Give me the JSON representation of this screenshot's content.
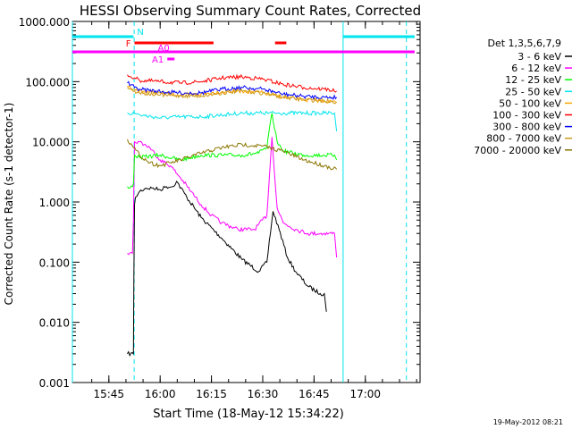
{
  "chart_data": {
    "type": "line",
    "title": "HESSI Observing Summary Count Rates, Corrected",
    "xlabel": "Start Time (18-May-12 15:34:22)",
    "ylabel": "Corrected Count Rate (s-1 detector-1)",
    "footer": "19-May-2012 08:21",
    "y_scale": "log",
    "ylim": [
      0.001,
      1000
    ],
    "xlim": [
      15.5723,
      17.2667
    ],
    "xlim_display": [
      "15:34:22",
      "17:16:00"
    ],
    "x_ticks": [
      {
        "label": "15:45",
        "x": 15.75
      },
      {
        "label": "16:00",
        "x": 16.0
      },
      {
        "label": "16:15",
        "x": 16.25
      },
      {
        "label": "16:30",
        "x": 16.5
      },
      {
        "label": "16:45",
        "x": 16.75
      },
      {
        "label": "17:00",
        "x": 17.0
      }
    ],
    "y_ticks": [
      {
        "label": "1000.000",
        "y": 1000
      },
      {
        "label": "100.000",
        "y": 100
      },
      {
        "label": "10.000",
        "y": 10
      },
      {
        "label": "1.000",
        "y": 1
      },
      {
        "label": "0.100",
        "y": 0.1
      },
      {
        "label": "0.010",
        "y": 0.01
      },
      {
        "label": "0.001",
        "y": 0.001
      }
    ],
    "legend_title": "Det 1,3,5,6,7,9",
    "legend_position": "right",
    "night_boundaries": [
      {
        "x": 15.5723,
        "style": "solid"
      },
      {
        "x": 15.8733,
        "style": "dashed"
      },
      {
        "x": 16.8917,
        "style": "solid"
      },
      {
        "x": 17.2,
        "style": "dashed"
      }
    ],
    "flag_bars": [
      {
        "label": "N",
        "color": "#00e5ee",
        "level": 1,
        "segments": [
          [
            15.5723,
            15.87
          ],
          [
            16.8917,
            17.24
          ]
        ]
      },
      {
        "label": "F",
        "color": "#ff0000",
        "level": 2,
        "segments": [
          [
            15.875,
            16.26
          ],
          [
            16.56,
            16.615
          ]
        ]
      },
      {
        "label": "A0",
        "color": "#ff00ff",
        "level": 3,
        "segments": [
          [
            15.875,
            16.05
          ]
        ]
      },
      {
        "label": "A1",
        "color": "#ff00ff",
        "level": 4,
        "segments": [
          [
            16.035,
            16.07
          ]
        ]
      },
      {
        "label": "",
        "color": "#ff00ff",
        "level": 0,
        "segments": [
          [
            15.5723,
            17.24
          ]
        ]
      }
    ],
    "series": [
      {
        "name": "3 - 6 keV",
        "color": "#000000",
        "x": [
          15.84,
          15.87,
          15.872,
          15.875,
          15.88,
          15.9,
          15.93,
          15.96,
          16.0,
          16.03,
          16.06,
          16.08,
          16.13,
          16.2,
          16.3,
          16.4,
          16.48,
          16.52,
          16.55,
          16.58,
          16.62,
          16.66,
          16.72,
          16.78,
          16.8,
          16.81
        ],
        "y": [
          0.003,
          0.003,
          0.06,
          0.9,
          1.2,
          1.5,
          1.7,
          1.7,
          1.6,
          1.8,
          1.8,
          2.2,
          1.2,
          0.55,
          0.25,
          0.11,
          0.07,
          0.1,
          0.7,
          0.35,
          0.12,
          0.07,
          0.04,
          0.03,
          0.03,
          0.015
        ]
      },
      {
        "name": "6 - 12 keV",
        "color": "#ff00ff",
        "x": [
          15.84,
          15.865,
          15.87,
          15.875,
          15.9,
          15.95,
          16.0,
          16.05,
          16.1,
          16.15,
          16.2,
          16.25,
          16.3,
          16.38,
          16.46,
          16.52,
          16.545,
          16.57,
          16.6,
          16.66,
          16.72,
          16.8,
          16.85,
          16.86
        ],
        "y": [
          0.14,
          0.14,
          0.5,
          10,
          10,
          8,
          5,
          4,
          2.5,
          1.5,
          0.9,
          0.6,
          0.45,
          0.35,
          0.35,
          0.6,
          12,
          0.8,
          0.45,
          0.35,
          0.3,
          0.3,
          0.3,
          0.12
        ]
      },
      {
        "name": "12 - 25 keV",
        "color": "#00ff00",
        "x": [
          15.84,
          15.865,
          15.87,
          15.875,
          15.9,
          16.0,
          16.1,
          16.2,
          16.3,
          16.4,
          16.48,
          16.52,
          16.545,
          16.57,
          16.6,
          16.7,
          16.8,
          16.85,
          16.86
        ],
        "y": [
          1.8,
          1.8,
          2.0,
          6,
          5.5,
          6,
          5,
          6,
          6,
          6,
          6.5,
          8,
          30,
          10,
          7,
          6,
          6,
          6,
          5
        ]
      },
      {
        "name": "25 - 50 keV",
        "color": "#00e5ee",
        "x": [
          15.84,
          15.875,
          15.9,
          16.0,
          16.1,
          16.2,
          16.3,
          16.4,
          16.5,
          16.6,
          16.7,
          16.8,
          16.85,
          16.86
        ],
        "y": [
          30,
          30,
          28,
          25,
          26,
          26,
          28,
          30,
          30,
          30,
          30,
          30,
          30,
          15
        ]
      },
      {
        "name": "50 - 100 keV",
        "color": "#ffa500",
        "x": [
          15.84,
          15.875,
          15.9,
          16.0,
          16.1,
          16.2,
          16.3,
          16.4,
          16.5,
          16.6,
          16.7,
          16.8,
          16.86
        ],
        "y": [
          85,
          75,
          70,
          65,
          60,
          62,
          68,
          70,
          65,
          55,
          50,
          48,
          45
        ]
      },
      {
        "name": "100 - 300 keV",
        "color": "#ff0000",
        "x": [
          15.84,
          15.875,
          15.9,
          16.0,
          16.1,
          16.2,
          16.3,
          16.4,
          16.5,
          16.6,
          16.7,
          16.8,
          16.86
        ],
        "y": [
          130,
          115,
          105,
          100,
          95,
          100,
          115,
          120,
          110,
          90,
          80,
          75,
          70
        ]
      },
      {
        "name": "300 - 800 keV",
        "color": "#0000ff",
        "x": [
          15.84,
          15.875,
          15.9,
          16.0,
          16.1,
          16.2,
          16.3,
          16.4,
          16.5,
          16.6,
          16.7,
          16.8,
          16.86
        ],
        "y": [
          95,
          80,
          75,
          68,
          65,
          65,
          75,
          80,
          75,
          62,
          57,
          55,
          55
        ]
      },
      {
        "name": "800 - 7000 keV",
        "color": "#cd9b1d",
        "x": [
          15.84,
          15.875,
          15.9,
          16.0,
          16.1,
          16.2,
          16.3,
          16.4,
          16.5,
          16.6,
          16.7,
          16.8,
          16.86
        ],
        "y": [
          80,
          70,
          65,
          60,
          58,
          58,
          65,
          70,
          65,
          55,
          50,
          48,
          46
        ]
      },
      {
        "name": "7000 - 20000 keV",
        "color": "#8b7500",
        "x": [
          15.84,
          15.87,
          15.9,
          15.95,
          16.0,
          16.05,
          16.1,
          16.2,
          16.3,
          16.4,
          16.5,
          16.6,
          16.7,
          16.8,
          16.86
        ],
        "y": [
          11,
          8,
          6,
          4.5,
          4,
          4.5,
          5,
          6.5,
          8,
          9,
          8.5,
          7,
          5,
          4,
          3.5
        ]
      }
    ]
  }
}
